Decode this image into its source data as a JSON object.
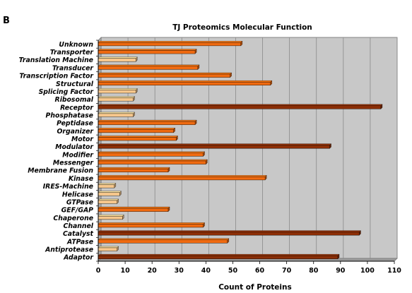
{
  "panel_letter": "B",
  "chart_data": {
    "type": "bar",
    "orientation": "horizontal",
    "title": "TJ Proteomics Molecular Function",
    "xlabel": "Count of Proteins",
    "ylabel": "",
    "xlim": [
      0,
      110
    ],
    "xticks": [
      0,
      10,
      20,
      30,
      40,
      50,
      60,
      70,
      80,
      90,
      100,
      110
    ],
    "grid": "vertical",
    "legend": "none",
    "categories": [
      "Unknown",
      "Transporter",
      "Translation Machine",
      "Transducer",
      "Transcription Factor",
      "Structural",
      "Splicing Factor",
      "Ribosomal",
      "Receptor",
      "Phosphatase",
      "Peptidase",
      "Organizer",
      "Motor",
      "Modulator",
      "Modifier",
      "Messenger",
      "Membrane Fusion",
      "Kinase",
      "IRES-Machine",
      "Helicase",
      "GTPase",
      "GEF/GAP",
      "Chaperone",
      "Channel",
      "Catalyst",
      "ATPase",
      "Antiprotease",
      "Adaptor"
    ],
    "values": [
      53,
      36,
      14,
      37,
      49,
      64,
      14,
      13,
      105,
      13,
      36,
      28,
      29,
      86,
      39,
      40,
      26,
      62,
      6,
      8,
      7,
      26,
      9,
      39,
      97,
      48,
      7,
      89
    ],
    "colors": {
      "plot_background": "#c8c8c8",
      "gridline": "#8a8a8a",
      "low": "#f7c78c",
      "mid": "#f06a10",
      "high": "#8b2e06"
    }
  }
}
